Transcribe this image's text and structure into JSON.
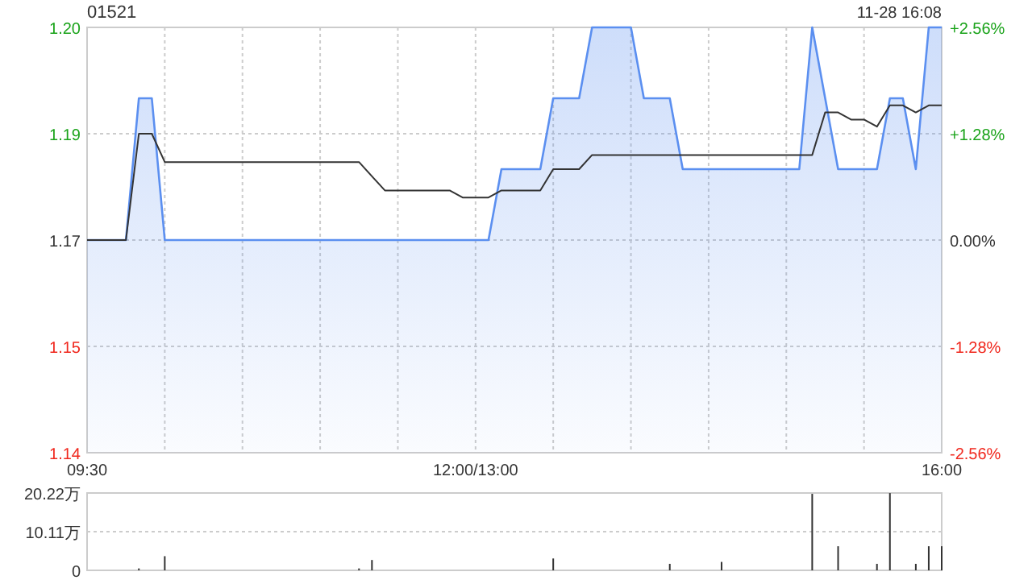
{
  "chart_data": [
    {
      "type": "line",
      "title": "01521",
      "subtitle": "11-28 16:08",
      "categories": [
        "09:30",
        null,
        null,
        null,
        null,
        null,
        null,
        null,
        null,
        null,
        null,
        null,
        null,
        null,
        null,
        null,
        null,
        null,
        null,
        null,
        null,
        null,
        null,
        null,
        null,
        null,
        null,
        null,
        null,
        null,
        "12:00/13:00",
        null,
        null,
        null,
        null,
        null,
        null,
        null,
        null,
        null,
        null,
        null,
        null,
        null,
        null,
        null,
        null,
        null,
        null,
        null,
        null,
        null,
        null,
        null,
        null,
        null,
        null,
        null,
        null,
        null,
        null,
        null,
        null,
        null,
        null,
        null,
        "16:00"
      ],
      "ylim": [
        1.14,
        1.2
      ],
      "yticks": [
        {
          "value": 1.2,
          "label": "1.20"
        },
        {
          "value": 1.185,
          "label": "1.19"
        },
        1.17,
        {
          "value": 1.155,
          "label": "1.15"
        },
        1.14
      ],
      "y2lim": [
        -2.56,
        2.56
      ],
      "y2ticks": [
        {
          "value": 2.56,
          "label": "+2.56%"
        },
        {
          "value": 1.28,
          "label": "+1.28%"
        },
        {
          "value": 0,
          "label": "0.00%"
        },
        {
          "value": -1.28,
          "label": "-1.28%"
        },
        {
          "value": -2.56,
          "label": "-2.56%"
        }
      ],
      "grid": true,
      "series": [
        {
          "type": "area",
          "color": "#5b8ff0",
          "values": [
            1.17,
            1.17,
            1.17,
            1.17,
            1.19,
            1.19,
            1.17,
            1.17,
            1.17,
            1.17,
            1.17,
            1.17,
            1.17,
            1.17,
            1.17,
            1.17,
            1.17,
            1.17,
            1.17,
            1.17,
            1.17,
            1.17,
            1.17,
            1.17,
            1.17,
            1.17,
            1.17,
            1.17,
            1.17,
            1.17,
            1.17,
            1.17,
            1.18,
            1.18,
            1.18,
            1.18,
            1.19,
            1.19,
            1.19,
            1.2,
            1.2,
            1.2,
            1.2,
            1.19,
            1.19,
            1.19,
            1.18,
            1.18,
            1.18,
            1.18,
            1.18,
            1.18,
            1.18,
            1.18,
            1.18,
            1.18,
            1.2,
            1.19,
            1.18,
            1.18,
            1.18,
            1.18,
            1.19,
            1.19,
            1.18,
            1.2,
            1.2
          ]
        },
        {
          "color": "#333333",
          "values": [
            1.17,
            1.17,
            1.17,
            1.17,
            1.185,
            1.185,
            1.181,
            1.181,
            1.181,
            1.181,
            1.181,
            1.181,
            1.181,
            1.181,
            1.181,
            1.181,
            1.181,
            1.181,
            1.181,
            1.181,
            1.181,
            1.181,
            1.179,
            1.177,
            1.177,
            1.177,
            1.177,
            1.177,
            1.177,
            1.176,
            1.176,
            1.176,
            1.177,
            1.177,
            1.177,
            1.177,
            1.18,
            1.18,
            1.18,
            1.182,
            1.182,
            1.182,
            1.182,
            1.182,
            1.182,
            1.182,
            1.182,
            1.182,
            1.182,
            1.182,
            1.182,
            1.182,
            1.182,
            1.182,
            1.182,
            1.182,
            1.182,
            1.188,
            1.188,
            1.187,
            1.187,
            1.186,
            1.189,
            1.189,
            1.188,
            1.189,
            1.189
          ]
        }
      ]
    },
    {
      "type": "bar",
      "categories": [
        null,
        null,
        null,
        null,
        null,
        null,
        null,
        null,
        null,
        null,
        null,
        null,
        null,
        null,
        null,
        null,
        null,
        null,
        null,
        null,
        null,
        null,
        null,
        null,
        null,
        null,
        null,
        null,
        null,
        null,
        null,
        null,
        null,
        null,
        null,
        null,
        null,
        null,
        null,
        null,
        null,
        null,
        null,
        null,
        null,
        null,
        null,
        null,
        null,
        null,
        null,
        null,
        null,
        null,
        null,
        null,
        null,
        null,
        null,
        null,
        null,
        null,
        null,
        null,
        null,
        null,
        null
      ],
      "ylim": [
        0,
        20.22
      ],
      "yticks": [
        {
          "value": 20.22,
          "label": "20.22万"
        },
        {
          "value": 10.11,
          "label": "10.11万"
        },
        0
      ],
      "grid": "y",
      "tick_labels": "y",
      "color": "#333333",
      "values": [
        null,
        null,
        null,
        null,
        0.5,
        null,
        3.7,
        null,
        null,
        null,
        null,
        null,
        null,
        null,
        null,
        null,
        null,
        null,
        null,
        null,
        null,
        0.5,
        2.7,
        null,
        null,
        null,
        null,
        null,
        null,
        null,
        null,
        null,
        null,
        null,
        null,
        null,
        3.1,
        null,
        null,
        null,
        null,
        null,
        null,
        null,
        null,
        1.7,
        null,
        null,
        null,
        2.2,
        null,
        null,
        null,
        null,
        null,
        null,
        20,
        null,
        6.3,
        null,
        null,
        1.7,
        20.2,
        null,
        1.7,
        6.3,
        6.3
      ]
    }
  ]
}
